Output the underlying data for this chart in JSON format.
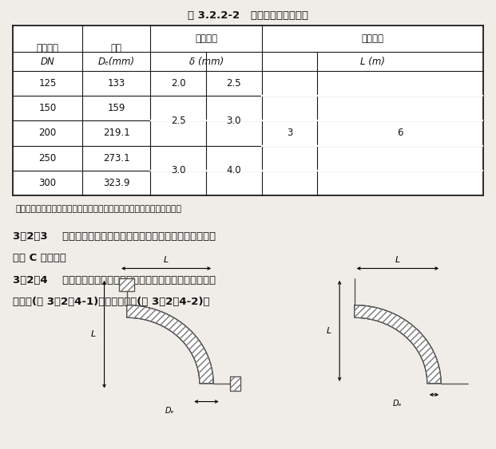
{
  "title": "表 3.2.2-2   对接式直管规格尺寸",
  "header1_col0": "公称尺寸",
  "header1_col1": "外径",
  "header1_col23": "最小壁厚",
  "header1_col45": "有效长度",
  "header2_col0": "DN",
  "header2_col1": "Dₑ(mm)",
  "header2_col23": "δ (mm)",
  "header2_col45": "L (m)",
  "dn_vals": [
    "125",
    "150",
    "200",
    "250",
    "300"
  ],
  "dw_vals": [
    "133",
    "159",
    "219.1",
    "273.1",
    "323.9"
  ],
  "delta1_vals": [
    "2.0",
    "2.5",
    "2.5",
    "3.0",
    "3.0"
  ],
  "delta2_vals": [
    "2.5",
    "3.0",
    "3.0",
    "4.0",
    "4.0"
  ],
  "L1_val": "3",
  "L2_val": "6",
  "note": "注：不锈锆管壁厚也可根据需方要求，以供需双方协商的厚度进行交货。",
  "sec323_line1": "3．2．3    建筑排水不锈锆管外径及壁厚的允许偏差应符合本规程",
  "sec323_line2": "附录 C 的规定。",
  "sec324_line1": "3．2．4    建筑排水不锈锆管道用管件按结构形式可分为单向承插",
  "sec324_line2": "式管件(图 3．2．4-1)和对接式管件(图 3．2．4-2)。",
  "dim_L": "L",
  "dim_Dw": "Dₑ",
  "bg_color": "#f0ede8",
  "table_bg": "#ffffff",
  "line_color": "#1a1a1a",
  "text_color": "#111111"
}
